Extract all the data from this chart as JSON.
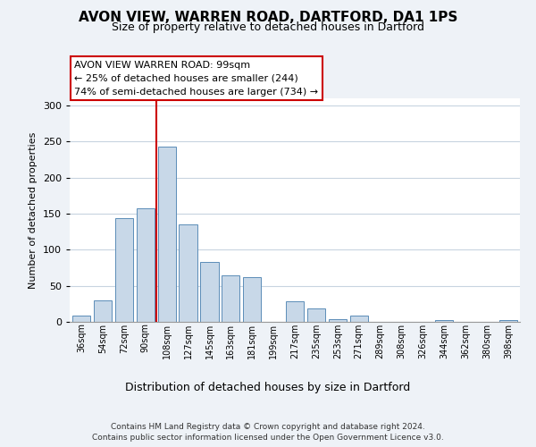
{
  "title": "AVON VIEW, WARREN ROAD, DARTFORD, DA1 1PS",
  "subtitle": "Size of property relative to detached houses in Dartford",
  "xlabel": "Distribution of detached houses by size in Dartford",
  "ylabel": "Number of detached properties",
  "footer_line1": "Contains HM Land Registry data © Crown copyright and database right 2024.",
  "footer_line2": "Contains public sector information licensed under the Open Government Licence v3.0.",
  "bar_labels": [
    "36sqm",
    "54sqm",
    "72sqm",
    "90sqm",
    "108sqm",
    "127sqm",
    "145sqm",
    "163sqm",
    "181sqm",
    "199sqm",
    "217sqm",
    "235sqm",
    "253sqm",
    "271sqm",
    "289sqm",
    "308sqm",
    "326sqm",
    "344sqm",
    "362sqm",
    "380sqm",
    "398sqm"
  ],
  "bar_values": [
    9,
    30,
    144,
    157,
    243,
    135,
    83,
    65,
    62,
    0,
    28,
    18,
    4,
    9,
    0,
    0,
    0,
    2,
    0,
    0,
    2
  ],
  "bar_color": "#c8d8e8",
  "bar_edge_color": "#5b8db8",
  "vline_color": "#cc0000",
  "ylim": [
    0,
    310
  ],
  "yticks": [
    0,
    50,
    100,
    150,
    200,
    250,
    300
  ],
  "annotation_title": "AVON VIEW WARREN ROAD: 99sqm",
  "annotation_line1": "← 25% of detached houses are smaller (244)",
  "annotation_line2": "74% of semi-detached houses are larger (734) →",
  "bg_color": "#eef2f7",
  "plot_bg_color": "#ffffff",
  "grid_color": "#c8d4e0",
  "title_fontsize": 11,
  "subtitle_fontsize": 9
}
